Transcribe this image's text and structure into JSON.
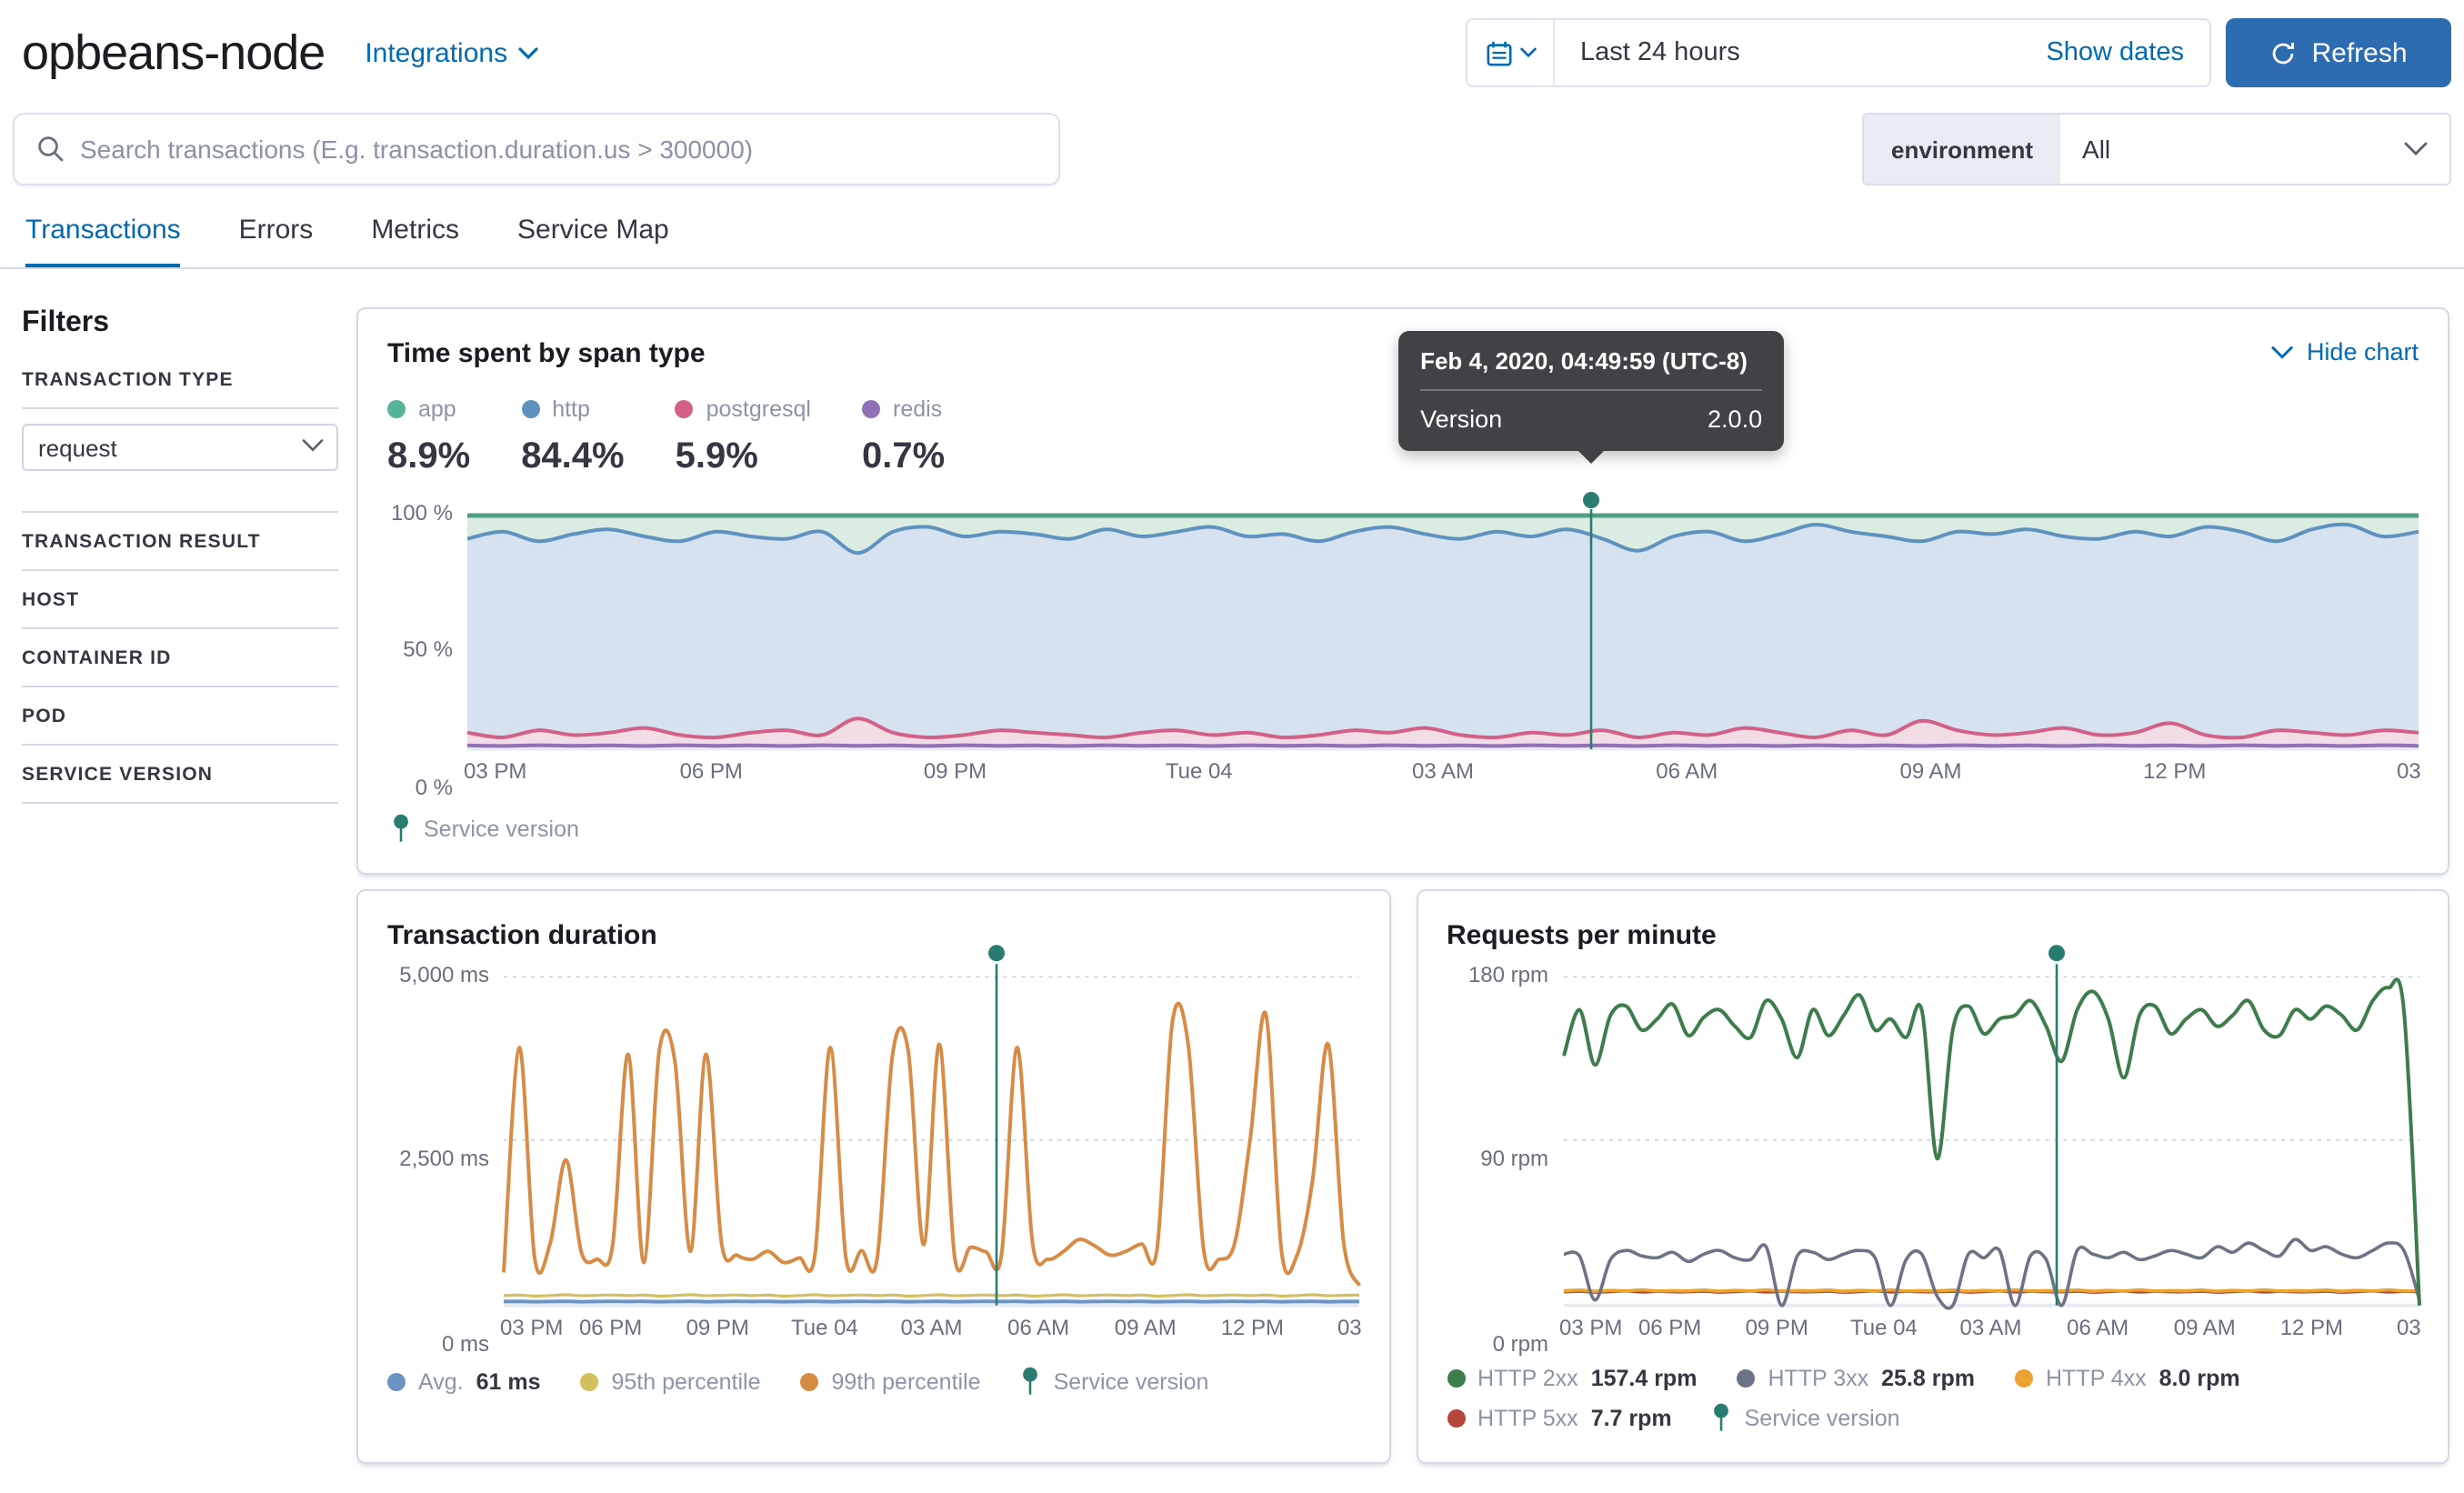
{
  "header": {
    "title": "opbeans-node",
    "integrations_label": "Integrations",
    "time_range_value": "Last 24 hours",
    "show_dates_label": "Show dates",
    "refresh_label": "Refresh"
  },
  "search": {
    "placeholder": "Search transactions (E.g. transaction.duration.us > 300000)",
    "environment_label": "environment",
    "environment_value": "All"
  },
  "tabs": [
    {
      "label": "Transactions",
      "active": true
    },
    {
      "label": "Errors",
      "active": false
    },
    {
      "label": "Metrics",
      "active": false
    },
    {
      "label": "Service Map",
      "active": false
    }
  ],
  "filters": {
    "title": "Filters",
    "transaction_type_value": "request",
    "sections": [
      {
        "label": "TRANSACTION TYPE"
      },
      {
        "label": "TRANSACTION RESULT"
      },
      {
        "label": "HOST"
      },
      {
        "label": "CONTAINER ID"
      },
      {
        "label": "POD"
      },
      {
        "label": "SERVICE VERSION"
      }
    ]
  },
  "tooltip": {
    "title": "Feb 4, 2020, 04:49:59 (UTC-8)",
    "row_label": "Version",
    "row_value": "2.0.0"
  },
  "colors": {
    "accent_blue": "#006BB4",
    "refresh_button": "#2e6cb2",
    "annotation_teal": "#2B7C70",
    "panel_border": "#d3dae6"
  },
  "chart_data": [
    {
      "id": "span_type",
      "type": "area",
      "title": "Time spent by span type",
      "hide_chart_label": "Hide chart",
      "ylim": [
        0,
        100
      ],
      "y_ticks": [
        "100 %",
        "50 %",
        "0 %"
      ],
      "x_ticks": [
        "03 PM",
        "06 PM",
        "09 PM",
        "Tue 04",
        "03 AM",
        "06 AM",
        "09 AM",
        "12 PM",
        "03"
      ],
      "legend": [
        {
          "label": "app",
          "color": "#4FA186",
          "fill": "#DBECE2",
          "pct": "8.9%"
        },
        {
          "label": "http",
          "color": "#6092C0",
          "fill": "#D7E2F1",
          "pct": "84.4%"
        },
        {
          "label": "postgresql",
          "color": "#D36086",
          "fill": "#F2DCE5",
          "pct": "5.9%"
        },
        {
          "label": "redis",
          "color": "#9170B8",
          "fill": "#E6DEF0",
          "pct": "0.7%"
        }
      ],
      "annotation": {
        "x_fraction": 0.576,
        "label": "Service version",
        "color": "#2B7C70"
      },
      "series": {
        "http_top": [
          89,
          92,
          88,
          91,
          93,
          90,
          88,
          92,
          90,
          89,
          92,
          83,
          92,
          94,
          90,
          92,
          91,
          89,
          93,
          90,
          92,
          94,
          90,
          91,
          88,
          92,
          94,
          91,
          89,
          92,
          90,
          93,
          89,
          84,
          90,
          92,
          88,
          91,
          95,
          92,
          90,
          88,
          92,
          91,
          93,
          90,
          89,
          92,
          90,
          94,
          92,
          88,
          93,
          95,
          90,
          92
        ],
        "postgresql_top": [
          7,
          5,
          8,
          6,
          7,
          9,
          6,
          5,
          7,
          8,
          6,
          13,
          7,
          5,
          6,
          8,
          7,
          6,
          5,
          7,
          8,
          6,
          7,
          5,
          6,
          8,
          7,
          9,
          6,
          5,
          7,
          6,
          8,
          5,
          7,
          6,
          9,
          7,
          5,
          8,
          6,
          12,
          8,
          6,
          7,
          9,
          6,
          7,
          11,
          6,
          5,
          8,
          7,
          6,
          8,
          7
        ],
        "redis_top": [
          1.6,
          1.4,
          1.7,
          1.5,
          1.6,
          1.4,
          1.7,
          1.5,
          1.6,
          1.4,
          1.7,
          1.5,
          1.6,
          1.4,
          1.7,
          1.5,
          1.6,
          1.4,
          1.7,
          1.5,
          1.6,
          1.4,
          1.7,
          1.5,
          1.6,
          1.4,
          1.7,
          1.5,
          1.6,
          1.4,
          1.7,
          1.5,
          1.6,
          1.4,
          1.7,
          1.5,
          1.6,
          1.4,
          1.7,
          1.5,
          1.6,
          1.4,
          1.7,
          1.5,
          1.6,
          1.4,
          1.7,
          1.5,
          1.6,
          1.4,
          1.7,
          1.5,
          1.6,
          1.4,
          1.7,
          1.5
        ]
      }
    },
    {
      "id": "duration",
      "type": "line",
      "title": "Transaction duration",
      "ylim": [
        0,
        5000
      ],
      "y_ticks": [
        "5,000 ms",
        "2,500 ms",
        "0 ms"
      ],
      "x_ticks": [
        "03 PM",
        "06 PM",
        "09 PM",
        "Tue 04",
        "03 AM",
        "06 AM",
        "09 AM",
        "12 PM",
        "03"
      ],
      "legend": [
        {
          "label": "Avg.",
          "value": "61 ms",
          "color": "#6B93C3"
        },
        {
          "label": "95th percentile",
          "value": "",
          "color": "#D2C05E"
        },
        {
          "label": "99th percentile",
          "value": "",
          "color": "#D78B45"
        },
        {
          "label": "Service version",
          "value": "",
          "color": "#2B7C70",
          "marker": "pin"
        }
      ],
      "annotation": {
        "x_fraction": 0.576,
        "color": "#2B7C70"
      },
      "series": [
        {
          "name": "95th percentile",
          "color": "#D2C05E",
          "width": 1.6,
          "values": [
            150,
            158,
            144,
            152,
            162,
            148,
            155,
            160,
            150,
            158,
            144,
            152,
            162,
            148,
            155,
            160,
            150,
            158,
            144,
            152,
            162,
            148,
            155,
            160,
            150,
            158,
            144,
            152,
            162,
            148,
            155,
            160,
            150,
            158,
            144,
            152,
            162,
            148,
            155,
            160,
            150,
            158,
            144,
            152,
            162,
            148,
            155,
            160,
            150,
            158,
            144,
            152,
            162,
            148,
            155,
            160
          ]
        },
        {
          "name": "Avg.",
          "color": "#6B93C3",
          "width": 2,
          "values": [
            60,
            62,
            58,
            61,
            63,
            59,
            60,
            62,
            60,
            62,
            58,
            61,
            63,
            59,
            60,
            62,
            60,
            62,
            58,
            61,
            63,
            59,
            60,
            62,
            60,
            62,
            58,
            61,
            63,
            59,
            60,
            62,
            60,
            62,
            58,
            61,
            63,
            59,
            60,
            62,
            60,
            62,
            58,
            61,
            63,
            59,
            60,
            62,
            60,
            62,
            58,
            61,
            63,
            59,
            60,
            62
          ]
        },
        {
          "name": "99th percentile",
          "color": "#D78B45",
          "width": 2,
          "values": [
            500,
            3900,
            700,
            950,
            2200,
            800,
            700,
            900,
            3800,
            650,
            3850,
            3700,
            820,
            3800,
            950,
            760,
            700,
            820,
            650,
            720,
            760,
            3900,
            720,
            830,
            700,
            3800,
            3850,
            920,
            3950,
            720,
            880,
            810,
            760,
            3900,
            930,
            700,
            820,
            1000,
            900,
            760,
            820,
            930,
            860,
            4300,
            3950,
            830,
            700,
            950,
            2550,
            4400,
            820,
            760,
            1900,
            3950,
            950,
            300
          ]
        }
      ]
    },
    {
      "id": "rpm",
      "type": "line",
      "title": "Requests per minute",
      "ylim": [
        0,
        180
      ],
      "y_ticks": [
        "180 rpm",
        "90 rpm",
        "0 rpm"
      ],
      "x_ticks": [
        "03 PM",
        "06 PM",
        "09 PM",
        "Tue 04",
        "03 AM",
        "06 AM",
        "09 AM",
        "12 PM",
        "03"
      ],
      "legend": [
        {
          "label": "HTTP 2xx",
          "value": "157.4 rpm",
          "color": "#3C7D4B"
        },
        {
          "label": "HTTP 3xx",
          "value": "25.8 rpm",
          "color": "#6C7384"
        },
        {
          "label": "HTTP 4xx",
          "value": "8.0 rpm",
          "color": "#EBA432"
        },
        {
          "label": "HTTP 5xx",
          "value": "7.7 rpm",
          "color": "#B5463B"
        },
        {
          "label": "Service version",
          "value": "",
          "color": "#2B7C70",
          "marker": "pin"
        }
      ],
      "annotation": {
        "x_fraction": 0.576,
        "color": "#2B7C70"
      },
      "series": [
        {
          "name": "HTTP 5xx",
          "color": "#B5463B",
          "width": 1.8,
          "values": [
            7.5,
            7.8,
            7.3,
            7.6,
            7.9,
            7.4,
            7.7,
            7.5,
            7.5,
            7.8,
            7.3,
            7.6,
            7.9,
            7.4,
            7.7,
            7.5,
            7.5,
            7.8,
            7.3,
            7.6,
            7.9,
            7.4,
            7.7,
            7.5,
            7.5,
            7.8,
            7.3,
            7.6,
            7.9,
            7.4,
            7.7,
            7.5,
            7.5,
            7.8,
            7.3,
            7.6,
            7.9,
            7.4,
            7.7,
            7.5,
            7.5,
            7.8,
            7.3,
            7.6,
            7.9,
            7.4,
            7.7,
            7.5,
            7.5,
            7.8,
            7.3,
            7.6,
            7.9,
            7.4,
            7.7,
            7.5
          ]
        },
        {
          "name": "HTTP 4xx",
          "color": "#EBA432",
          "width": 1.8,
          "values": [
            8,
            8.4,
            7.8,
            8.2,
            8,
            8.5,
            7.9,
            8.1,
            8,
            8.4,
            7.8,
            8.2,
            8,
            8.5,
            7.9,
            8.1,
            8,
            8.4,
            7.8,
            8.2,
            8,
            8.5,
            7.9,
            8.1,
            8,
            8.4,
            7.8,
            8.2,
            8,
            8.5,
            7.9,
            8.1,
            8,
            8.4,
            7.8,
            8.2,
            8,
            8.5,
            7.9,
            8.1,
            8,
            8.4,
            7.8,
            8.2,
            8,
            8.5,
            7.9,
            8.1,
            8,
            8.4,
            7.8,
            8.2,
            8,
            8.5,
            7.9,
            8.1
          ]
        },
        {
          "name": "HTTP 3xx",
          "color": "#6C7384",
          "width": 1.8,
          "values": [
            28,
            27,
            3,
            25,
            30,
            27,
            26,
            29,
            24,
            28,
            30,
            26,
            25,
            32,
            0,
            27,
            29,
            25,
            28,
            30,
            26,
            0,
            25,
            28,
            5,
            0,
            28,
            26,
            30,
            0,
            27,
            25,
            0,
            30,
            28,
            26,
            29,
            25,
            27,
            30,
            28,
            26,
            32,
            29,
            34,
            30,
            27,
            36,
            30,
            32,
            28,
            26,
            30,
            34,
            30,
            3
          ]
        },
        {
          "name": "HTTP 2xx",
          "color": "#3C7D4B",
          "width": 2,
          "values": [
            136,
            161,
            131,
            158,
            163,
            150,
            156,
            164,
            147,
            157,
            161,
            152,
            146,
            166,
            156,
            135,
            161,
            147,
            158,
            169,
            150,
            156,
            146,
            161,
            80,
            150,
            163,
            148,
            156,
            158,
            166,
            152,
            133,
            161,
            171,
            156,
            124,
            158,
            163,
            148,
            156,
            161,
            152,
            158,
            166,
            150,
            147,
            161,
            156,
            163,
            158,
            150,
            166,
            173,
            161,
            0
          ]
        }
      ]
    }
  ]
}
